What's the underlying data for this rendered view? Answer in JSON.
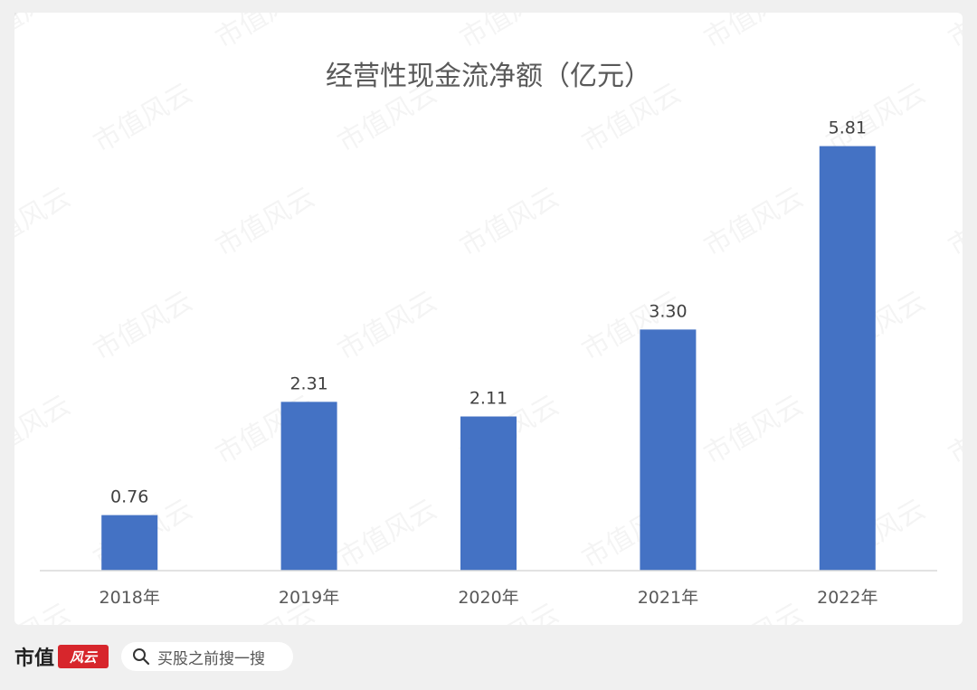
{
  "chart_data": {
    "type": "bar",
    "title": "经营性现金流净额（亿元）",
    "categories": [
      "2018年",
      "2019年",
      "2020年",
      "2021年",
      "2022年"
    ],
    "values": [
      0.76,
      2.31,
      2.11,
      3.3,
      5.81
    ],
    "value_labels": [
      "0.76",
      "2.31",
      "2.11",
      "3.30",
      "5.81"
    ],
    "ylim": [
      0,
      6.3
    ],
    "bar_color": "#4472c4",
    "grid": false,
    "xlabel": "",
    "ylabel": ""
  },
  "watermark": {
    "text": "市值风云"
  },
  "footer": {
    "brand_name": "市值",
    "search_text": "买股之前搜一搜"
  }
}
